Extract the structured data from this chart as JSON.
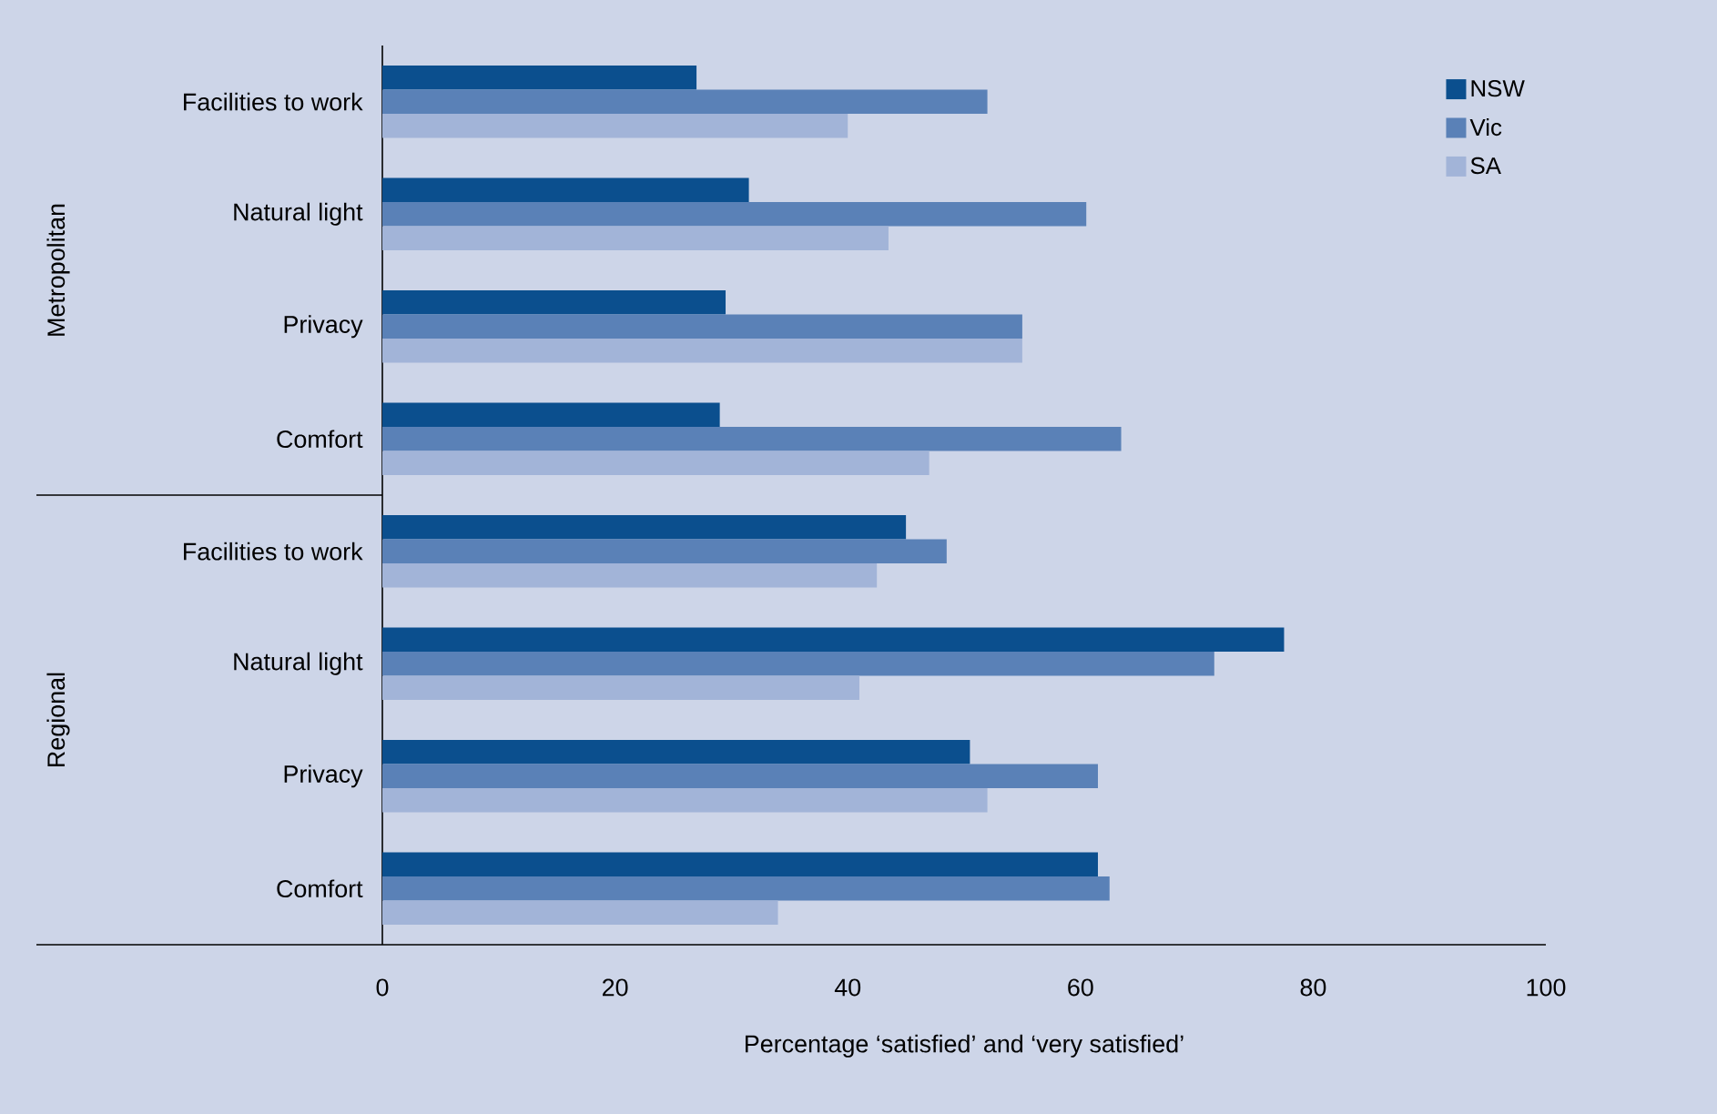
{
  "chart_data": {
    "type": "bar",
    "orientation": "horizontal",
    "xlabel": "Percentage ‘satisfied’ and ‘very satisfied’",
    "categories": [
      "Facilities to work",
      "Natural light",
      "Privacy",
      "Comfort",
      "Facilities to work",
      "Natural light",
      "Privacy",
      "Comfort"
    ],
    "series": [
      {
        "name": "NSW",
        "color": "#0b4f8e",
        "values": [
          27,
          31.5,
          29.5,
          29,
          45,
          77.5,
          50.5,
          61.5
        ]
      },
      {
        "name": "Vic",
        "color": "#5a81b7",
        "values": [
          52,
          60.5,
          55,
          63.5,
          48.5,
          71.5,
          61.5,
          62.5
        ]
      },
      {
        "name": "SA",
        "color": "#a2b4d8",
        "values": [
          40,
          43.5,
          55,
          47,
          42.5,
          41,
          52,
          34
        ]
      }
    ],
    "annotations": [
      "Metropolitan",
      "Regional"
    ],
    "xlim": [
      0,
      100
    ],
    "xticks": [
      0,
      20,
      40,
      60,
      80,
      100
    ],
    "grid": false,
    "legend": "top right"
  }
}
